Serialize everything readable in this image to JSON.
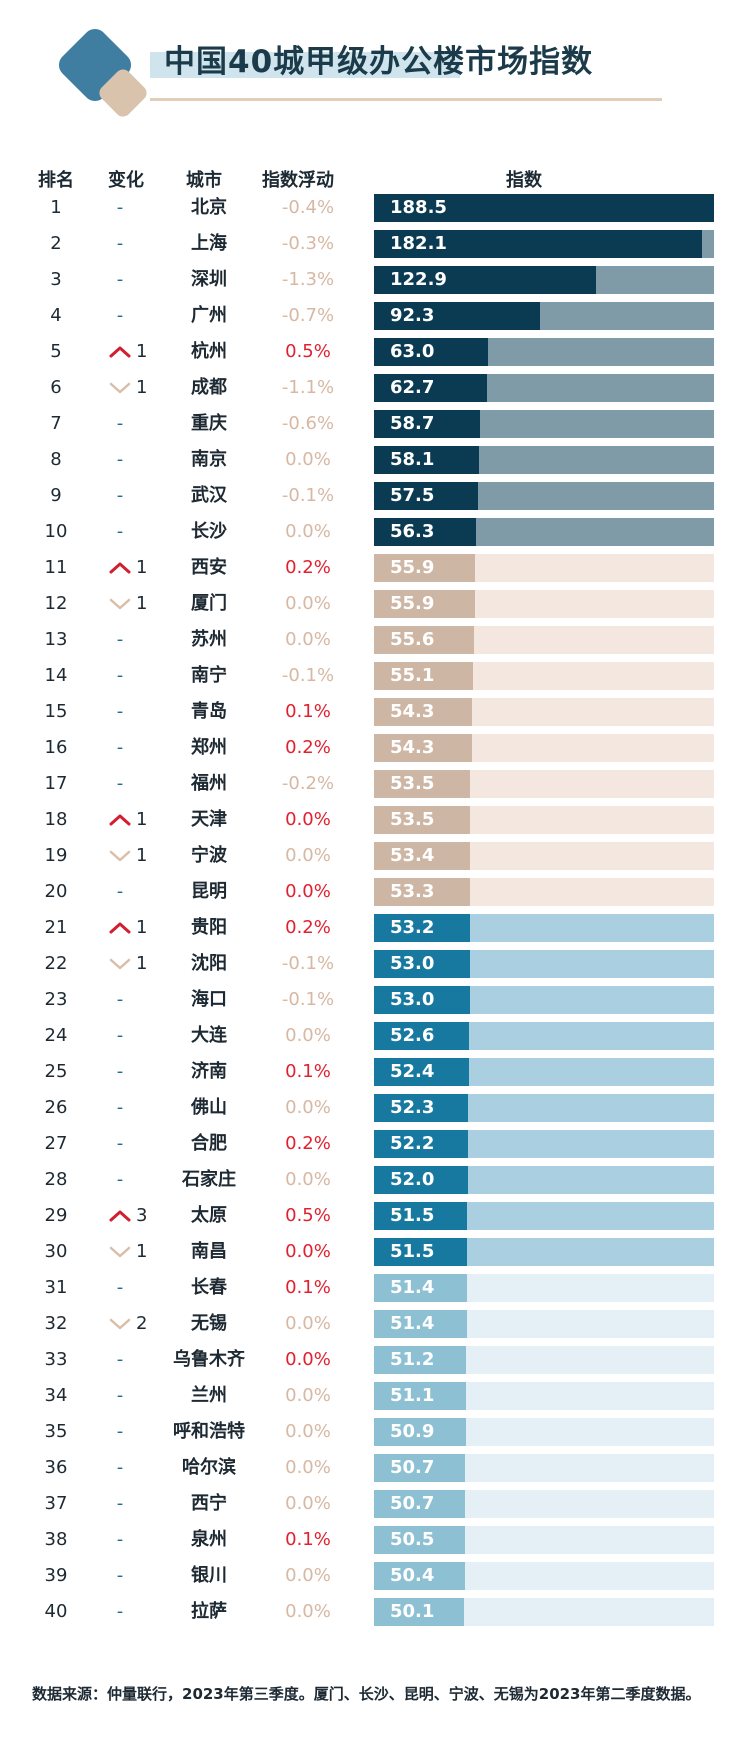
{
  "title": "中国40城甲级办公楼市场指数",
  "headers": {
    "rank": "排名",
    "change": "变化",
    "city": "城市",
    "float": "指数浮动",
    "index": "指数"
  },
  "footnote": "数据来源：仲量联行，2023年第三季度。厦门、长沙、昆明、宁波、无锡为2023年第二季度数据。",
  "colors": {
    "title": "#1b3b4a",
    "logo_blue": "#3f7ea1",
    "logo_sand": "#d9c3ad",
    "change_up": "#d11f2f",
    "change_down": "#d9bfa8",
    "float_positive": "#e0212f",
    "float_other": "#d7b8a3",
    "tier1_fill": "#0b3b52",
    "tier1_track": "#7f9ba8",
    "tier2_fill": "#ceb6a4",
    "tier2_track": "#f3e7e0",
    "tier3_fill": "#17799f",
    "tier3_track": "#a9cfe0",
    "tier4_fill": "#8ec0d4",
    "tier4_track": "#e4f0f5"
  },
  "chart_data": {
    "type": "bar",
    "orientation": "horizontal",
    "xlim": [
      0,
      188.5
    ],
    "categories": [
      "北京",
      "上海",
      "深圳",
      "广州",
      "杭州",
      "成都",
      "重庆",
      "南京",
      "武汉",
      "长沙",
      "西安",
      "厦门",
      "苏州",
      "南宁",
      "青岛",
      "郑州",
      "福州",
      "天津",
      "宁波",
      "昆明",
      "贵阳",
      "沈阳",
      "海口",
      "大连",
      "济南",
      "佛山",
      "合肥",
      "石家庄",
      "太原",
      "南昌",
      "长春",
      "无锡",
      "乌鲁木齐",
      "兰州",
      "呼和浩特",
      "哈尔滨",
      "西宁",
      "泉州",
      "银川",
      "拉萨"
    ],
    "rows": [
      {
        "rank": "1",
        "change_dir": "none",
        "change": "-",
        "city": "北京",
        "float": "-0.4%",
        "value": 188.5,
        "label": "188.5"
      },
      {
        "rank": "2",
        "change_dir": "none",
        "change": "-",
        "city": "上海",
        "float": "-0.3%",
        "value": 182.1,
        "label": "182.1"
      },
      {
        "rank": "3",
        "change_dir": "none",
        "change": "-",
        "city": "深圳",
        "float": "-1.3%",
        "value": 122.9,
        "label": "122.9"
      },
      {
        "rank": "4",
        "change_dir": "none",
        "change": "-",
        "city": "广州",
        "float": "-0.7%",
        "value": 92.3,
        "label": "92.3"
      },
      {
        "rank": "5",
        "change_dir": "up",
        "change": "1",
        "city": "杭州",
        "float": "0.5%",
        "value": 63.0,
        "label": "63.0"
      },
      {
        "rank": "6",
        "change_dir": "down",
        "change": "1",
        "city": "成都",
        "float": "-1.1%",
        "value": 62.7,
        "label": "62.7"
      },
      {
        "rank": "7",
        "change_dir": "none",
        "change": "-",
        "city": "重庆",
        "float": "-0.6%",
        "value": 58.7,
        "label": "58.7"
      },
      {
        "rank": "8",
        "change_dir": "none",
        "change": "-",
        "city": "南京",
        "float": "0.0%",
        "value": 58.1,
        "label": "58.1"
      },
      {
        "rank": "9",
        "change_dir": "none",
        "change": "-",
        "city": "武汉",
        "float": "-0.1%",
        "value": 57.5,
        "label": "57.5"
      },
      {
        "rank": "10",
        "change_dir": "none",
        "change": "-",
        "city": "长沙",
        "float": "0.0%",
        "value": 56.3,
        "label": "56.3"
      },
      {
        "rank": "11",
        "change_dir": "up",
        "change": "1",
        "city": "西安",
        "float": "0.2%",
        "value": 55.9,
        "label": "55.9"
      },
      {
        "rank": "12",
        "change_dir": "down",
        "change": "1",
        "city": "厦门",
        "float": "0.0%",
        "value": 55.9,
        "label": "55.9"
      },
      {
        "rank": "13",
        "change_dir": "none",
        "change": "-",
        "city": "苏州",
        "float": "0.0%",
        "value": 55.6,
        "label": "55.6"
      },
      {
        "rank": "14",
        "change_dir": "none",
        "change": "-",
        "city": "南宁",
        "float": "-0.1%",
        "value": 55.1,
        "label": "55.1"
      },
      {
        "rank": "15",
        "change_dir": "none",
        "change": "-",
        "city": "青岛",
        "float": "0.1%",
        "value": 54.3,
        "label": "54.3"
      },
      {
        "rank": "16",
        "change_dir": "none",
        "change": "-",
        "city": "郑州",
        "float": "0.2%",
        "value": 54.3,
        "label": "54.3"
      },
      {
        "rank": "17",
        "change_dir": "none",
        "change": "-",
        "city": "福州",
        "float": "-0.2%",
        "value": 53.5,
        "label": "53.5"
      },
      {
        "rank": "18",
        "change_dir": "up",
        "change": "1",
        "city": "天津",
        "float": "0.0%",
        "value": 53.5,
        "label": "53.5"
      },
      {
        "rank": "19",
        "change_dir": "down",
        "change": "1",
        "city": "宁波",
        "float": "0.0%",
        "value": 53.4,
        "label": "53.4"
      },
      {
        "rank": "20",
        "change_dir": "none",
        "change": "-",
        "city": "昆明",
        "float": "0.0%",
        "value": 53.3,
        "label": "53.3"
      },
      {
        "rank": "21",
        "change_dir": "up",
        "change": "1",
        "city": "贵阳",
        "float": "0.2%",
        "value": 53.2,
        "label": "53.2"
      },
      {
        "rank": "22",
        "change_dir": "down",
        "change": "1",
        "city": "沈阳",
        "float": "-0.1%",
        "value": 53.0,
        "label": "53.0"
      },
      {
        "rank": "23",
        "change_dir": "none",
        "change": "-",
        "city": "海口",
        "float": "-0.1%",
        "value": 53.0,
        "label": "53.0"
      },
      {
        "rank": "24",
        "change_dir": "none",
        "change": "-",
        "city": "大连",
        "float": "0.0%",
        "value": 52.6,
        "label": "52.6"
      },
      {
        "rank": "25",
        "change_dir": "none",
        "change": "-",
        "city": "济南",
        "float": "0.1%",
        "value": 52.4,
        "label": "52.4"
      },
      {
        "rank": "26",
        "change_dir": "none",
        "change": "-",
        "city": "佛山",
        "float": "0.0%",
        "value": 52.3,
        "label": "52.3"
      },
      {
        "rank": "27",
        "change_dir": "none",
        "change": "-",
        "city": "合肥",
        "float": "0.2%",
        "value": 52.2,
        "label": "52.2"
      },
      {
        "rank": "28",
        "change_dir": "none",
        "change": "-",
        "city": "石家庄",
        "float": "0.0%",
        "value": 52.0,
        "label": "52.0"
      },
      {
        "rank": "29",
        "change_dir": "up",
        "change": "3",
        "city": "太原",
        "float": "0.5%",
        "value": 51.5,
        "label": "51.5"
      },
      {
        "rank": "30",
        "change_dir": "down",
        "change": "1",
        "city": "南昌",
        "float": "0.0%",
        "value": 51.5,
        "label": "51.5"
      },
      {
        "rank": "31",
        "change_dir": "none",
        "change": "-",
        "city": "长春",
        "float": "0.1%",
        "value": 51.4,
        "label": "51.4"
      },
      {
        "rank": "32",
        "change_dir": "down",
        "change": "2",
        "city": "无锡",
        "float": "0.0%",
        "value": 51.4,
        "label": "51.4"
      },
      {
        "rank": "33",
        "change_dir": "none",
        "change": "-",
        "city": "乌鲁木齐",
        "float": "0.0%",
        "value": 51.2,
        "label": "51.2"
      },
      {
        "rank": "34",
        "change_dir": "none",
        "change": "-",
        "city": "兰州",
        "float": "0.0%",
        "value": 51.1,
        "label": "51.1"
      },
      {
        "rank": "35",
        "change_dir": "none",
        "change": "-",
        "city": "呼和浩特",
        "float": "0.0%",
        "value": 50.9,
        "label": "50.9"
      },
      {
        "rank": "36",
        "change_dir": "none",
        "change": "-",
        "city": "哈尔滨",
        "float": "0.0%",
        "value": 50.7,
        "label": "50.7"
      },
      {
        "rank": "37",
        "change_dir": "none",
        "change": "-",
        "city": "西宁",
        "float": "0.0%",
        "value": 50.7,
        "label": "50.7"
      },
      {
        "rank": "38",
        "change_dir": "none",
        "change": "-",
        "city": "泉州",
        "float": "0.1%",
        "value": 50.5,
        "label": "50.5"
      },
      {
        "rank": "39",
        "change_dir": "none",
        "change": "-",
        "city": "银川",
        "float": "0.0%",
        "value": 50.4,
        "label": "50.4"
      },
      {
        "rank": "40",
        "change_dir": "none",
        "change": "-",
        "city": "拉萨",
        "float": "0.0%",
        "value": 50.1,
        "label": "50.1"
      }
    ]
  }
}
